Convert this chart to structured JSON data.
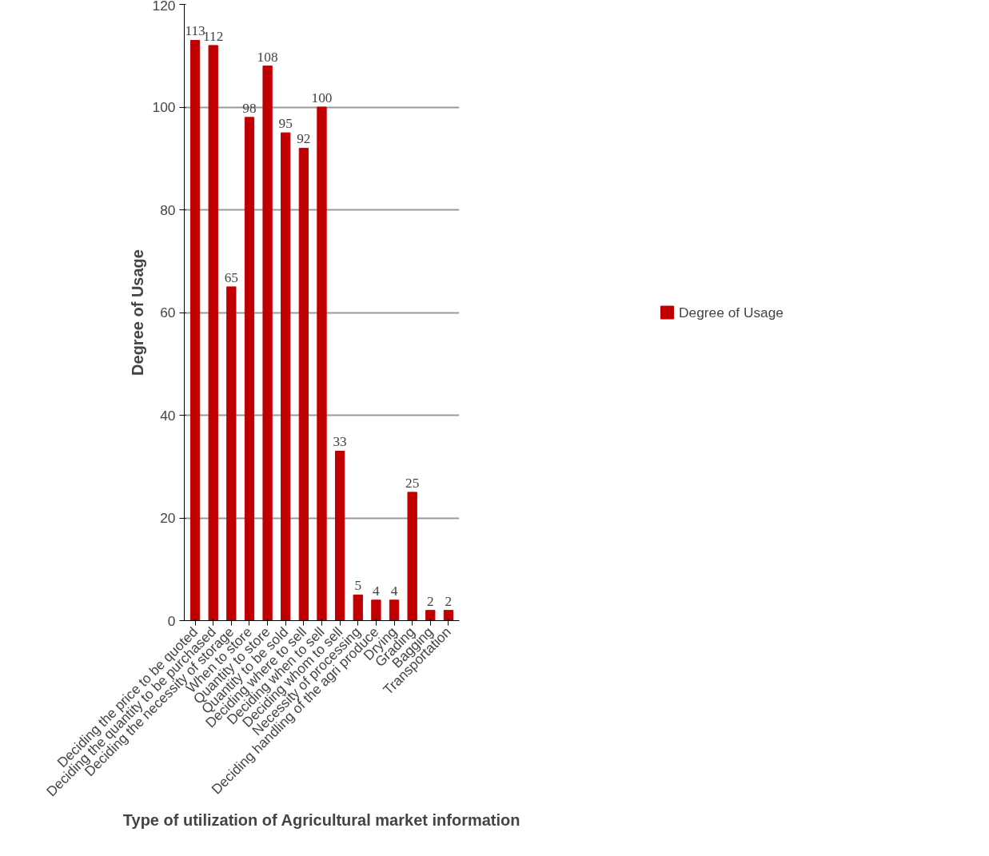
{
  "chart_data": {
    "type": "bar",
    "xlabel": "Type of utilization of Agricultural market information",
    "ylabel": "Degree of Usage",
    "categories": [
      "Deciding the price to be quoted",
      "Deciding the quantity to be purchased",
      "Deciding the necessity of storage",
      "When to store",
      "Quantity to store",
      "Quantity to be sold",
      "Deciding where to sell",
      "Deciding when to sell",
      "Deciding whom to sell",
      "Necessity of processing",
      "Deciding handling of the agri produce",
      "Drying",
      "Grading",
      "Bagging",
      "Transportation"
    ],
    "series": [
      {
        "name": "Degree of Usage",
        "color": "#c00000",
        "values": [
          113,
          112,
          65,
          98,
          108,
          95,
          92,
          100,
          33,
          5,
          4,
          4,
          25,
          2,
          2
        ]
      }
    ],
    "ylim": [
      0,
      120
    ],
    "yticks": [
      0,
      20,
      40,
      60,
      80,
      100,
      120
    ],
    "grid": "y",
    "legend": "right",
    "data_labels": true
  }
}
